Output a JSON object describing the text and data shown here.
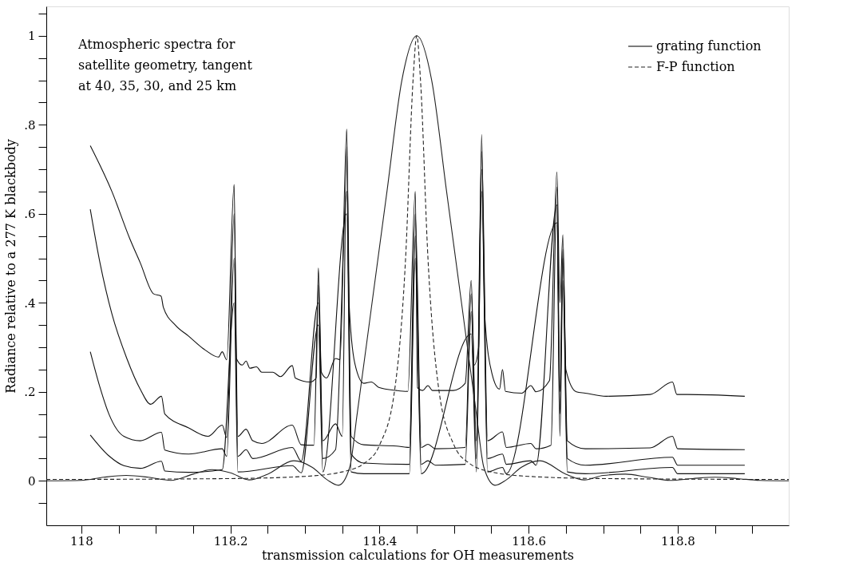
{
  "chart_data": {
    "type": "line",
    "xlabel": "transmission calculations for OH measurements",
    "ylabel": "Radiance relative to a 277 K blackbody",
    "annotations": [
      "Atmospheric spectra for satellite geometry, tangent at 40, 35, 30, and 25 km"
    ],
    "xlim": [
      117.953,
      118.949
    ],
    "xticks": [
      118,
      {
        "value": 118.05,
        "label": null
      },
      {
        "value": 118.1,
        "label": null
      },
      {
        "value": 118.15,
        "label": null
      },
      118.2,
      {
        "value": 118.25,
        "label": null
      },
      {
        "value": 118.3,
        "label": null
      },
      {
        "value": 118.35,
        "label": null
      },
      118.4,
      {
        "value": 118.45,
        "label": null
      },
      {
        "value": 118.5,
        "label": null
      },
      {
        "value": 118.55,
        "label": null
      },
      118.6,
      {
        "value": 118.65,
        "label": null
      },
      {
        "value": 118.7,
        "label": null
      },
      {
        "value": 118.75,
        "label": null
      },
      118.8,
      {
        "value": 118.85,
        "label": null
      },
      {
        "value": 118.9,
        "label": null
      }
    ],
    "ylim": [
      -0.1,
      1.066
    ],
    "yticks": [
      {
        "value": -0.05,
        "label": null
      },
      0,
      {
        "value": 0.05,
        "label": null
      },
      {
        "value": 0.1,
        "label": null
      },
      {
        "value": 0.15,
        "label": null
      },
      {
        "value": 0.2,
        "label": ".2"
      },
      {
        "value": 0.25,
        "label": null
      },
      {
        "value": 0.3,
        "label": null
      },
      {
        "value": 0.35,
        "label": null
      },
      {
        "value": 0.4,
        "label": ".4"
      },
      {
        "value": 0.45,
        "label": null
      },
      {
        "value": 0.5,
        "label": null
      },
      {
        "value": 0.55,
        "label": null
      },
      {
        "value": 0.6,
        "label": ".6"
      },
      {
        "value": 0.65,
        "label": null
      },
      {
        "value": 0.7,
        "label": null
      },
      {
        "value": 0.75,
        "label": null
      },
      {
        "value": 0.8,
        "label": ".8"
      },
      {
        "value": 0.85,
        "label": null
      },
      {
        "value": 0.9,
        "label": null
      },
      {
        "value": 0.95,
        "label": null
      },
      1,
      {
        "value": 1.05,
        "label": null
      }
    ],
    "grid": false,
    "legend": "top right",
    "marker": "none",
    "series": [
      {
        "color": "#111111",
        "line_style": "solid",
        "x": [
          118.012,
          118.041,
          118.065,
          118.079,
          118.097,
          118.107,
          118.11,
          118.126,
          118.144,
          118.166,
          118.184,
          118.189,
          118.195,
          118.205,
          118.208,
          118.216,
          118.221,
          118.226,
          118.235,
          118.242,
          118.257,
          118.267,
          118.283,
          118.287,
          118.307,
          118.315,
          118.318,
          118.322,
          118.329,
          118.341,
          118.347,
          118.356,
          118.359,
          118.367,
          118.379,
          118.389,
          118.399,
          118.423,
          118.438,
          118.448,
          118.451,
          118.458,
          118.465,
          118.471,
          118.499,
          118.515,
          118.523,
          118.527,
          118.533,
          118.537,
          118.541,
          118.551,
          118.561,
          118.565,
          118.569,
          118.591,
          118.603,
          118.61,
          118.628,
          118.638,
          118.642,
          118.646,
          118.65,
          118.664,
          118.676,
          118.704,
          118.763,
          118.793,
          118.799,
          118.813,
          118.89
        ],
        "values": [
          0.753,
          0.65,
          0.544,
          0.49,
          0.42,
          0.415,
          0.39,
          0.35,
          0.325,
          0.294,
          0.278,
          0.29,
          0.272,
          0.666,
          0.275,
          0.26,
          0.269,
          0.253,
          0.256,
          0.244,
          0.244,
          0.234,
          0.259,
          0.231,
          0.222,
          0.231,
          0.478,
          0.244,
          0.231,
          0.275,
          0.272,
          0.79,
          0.406,
          0.263,
          0.219,
          0.222,
          0.21,
          0.203,
          0.201,
          0.65,
          0.209,
          0.203,
          0.214,
          0.203,
          0.203,
          0.219,
          0.45,
          0.26,
          0.3,
          0.778,
          0.375,
          0.24,
          0.206,
          0.25,
          0.201,
          0.197,
          0.214,
          0.2,
          0.225,
          0.694,
          0.4,
          0.553,
          0.25,
          0.2,
          0.197,
          0.19,
          0.194,
          0.222,
          0.194,
          0.194,
          0.19
        ]
      },
      {
        "color": "#111111",
        "line_style": "solid",
        "x": [
          118.012,
          118.025,
          118.041,
          118.061,
          118.079,
          118.093,
          118.1075,
          118.112,
          118.144,
          118.17,
          118.189,
          118.195,
          118.205,
          118.21,
          118.221,
          118.23,
          118.242,
          118.283,
          118.295,
          118.312,
          118.318,
          118.324,
          118.341,
          118.35,
          118.356,
          118.362,
          118.379,
          118.423,
          118.44,
          118.448,
          118.456,
          118.465,
          118.475,
          118.515,
          118.523,
          118.53,
          118.537,
          118.545,
          118.565,
          118.57,
          118.603,
          118.61,
          118.63,
          118.638,
          118.642,
          118.646,
          118.652,
          118.676,
          118.763,
          118.793,
          118.8,
          118.89
        ],
        "values": [
          0.61,
          0.49,
          0.375,
          0.275,
          0.206,
          0.172,
          0.19,
          0.15,
          0.119,
          0.1,
          0.125,
          0.097,
          0.6,
          0.1,
          0.116,
          0.09,
          0.084,
          0.125,
          0.081,
          0.08,
          0.44,
          0.09,
          0.128,
          0.1,
          0.75,
          0.1,
          0.081,
          0.078,
          0.075,
          0.6,
          0.075,
          0.082,
          0.072,
          0.075,
          0.42,
          0.09,
          0.74,
          0.09,
          0.11,
          0.075,
          0.084,
          0.072,
          0.08,
          0.66,
          0.2,
          0.52,
          0.09,
          0.072,
          0.074,
          0.1,
          0.072,
          0.07
        ]
      },
      {
        "color": "#111111",
        "line_style": "solid",
        "x": [
          118.012,
          118.025,
          118.037,
          118.057,
          118.079,
          118.1075,
          118.112,
          118.144,
          118.189,
          118.195,
          118.205,
          118.21,
          118.221,
          118.23,
          118.283,
          118.295,
          118.318,
          118.324,
          118.341,
          118.356,
          118.362,
          118.379,
          118.44,
          118.448,
          118.456,
          118.465,
          118.475,
          118.515,
          118.523,
          118.53,
          118.537,
          118.545,
          118.565,
          118.57,
          118.603,
          118.61,
          118.638,
          118.642,
          118.646,
          118.652,
          118.676,
          118.793,
          118.8,
          118.89
        ],
        "values": [
          0.29,
          0.21,
          0.15,
          0.1,
          0.09,
          0.109,
          0.069,
          0.06,
          0.072,
          0.055,
          0.5,
          0.055,
          0.07,
          0.05,
          0.075,
          0.044,
          0.4,
          0.05,
          0.07,
          0.65,
          0.06,
          0.04,
          0.037,
          0.55,
          0.037,
          0.045,
          0.035,
          0.037,
          0.38,
          0.05,
          0.7,
          0.05,
          0.06,
          0.037,
          0.045,
          0.035,
          0.62,
          0.15,
          0.5,
          0.05,
          0.035,
          0.053,
          0.035,
          0.035
        ]
      },
      {
        "color": "#111111",
        "line_style": "solid",
        "x": [
          118.012,
          118.037,
          118.057,
          118.079,
          118.1075,
          118.112,
          118.144,
          118.189,
          118.205,
          118.21,
          118.283,
          118.295,
          118.318,
          118.324,
          118.356,
          118.362,
          118.379,
          118.44,
          118.448,
          118.456,
          118.523,
          118.53,
          118.537,
          118.545,
          118.565,
          118.57,
          118.638,
          118.642,
          118.646,
          118.652,
          118.676,
          118.793,
          118.8,
          118.89
        ],
        "values": [
          0.103,
          0.056,
          0.034,
          0.028,
          0.044,
          0.022,
          0.019,
          0.025,
          0.4,
          0.02,
          0.034,
          0.018,
          0.35,
          0.02,
          0.6,
          0.02,
          0.016,
          0.016,
          0.5,
          0.016,
          0.33,
          0.02,
          0.65,
          0.02,
          0.03,
          0.016,
          0.58,
          0.1,
          0.45,
          0.02,
          0.016,
          0.03,
          0.016,
          0.016
        ]
      },
      {
        "name": "grating function",
        "color": "#222222",
        "line_style": "solid",
        "x": [
          117.953,
          118.0,
          118.03,
          118.06,
          118.09,
          118.12,
          118.15,
          118.175,
          118.2,
          118.225,
          118.25,
          118.285,
          118.31,
          118.33,
          118.345,
          118.36,
          118.37,
          118.39,
          118.41,
          118.43,
          118.45,
          118.47,
          118.49,
          118.51,
          118.53,
          118.54,
          118.555,
          118.57,
          118.59,
          118.615,
          118.65,
          118.675,
          118.7,
          118.73,
          118.76,
          118.79,
          118.82,
          118.85,
          118.88,
          118.91,
          118.949
        ],
        "values": [
          0,
          0.001,
          0.008,
          0.012,
          0.008,
          0.001,
          0.015,
          0.025,
          0.018,
          0.002,
          0.015,
          0.045,
          0.03,
          0.002,
          -0.01,
          0.03,
          0.15,
          0.4,
          0.65,
          0.9,
          1.0,
          0.9,
          0.65,
          0.4,
          0.15,
          0.03,
          -0.01,
          0.002,
          0.03,
          0.045,
          0.015,
          0.002,
          0.012,
          0.015,
          0.008,
          0.001,
          0.005,
          0.008,
          0.005,
          0.001,
          0
        ]
      },
      {
        "name": "F-P function",
        "color": "#222222",
        "line_style": "dashed",
        "x": [
          117.953,
          118.2,
          118.3,
          118.35,
          118.38,
          118.4,
          118.42,
          118.435,
          118.445,
          118.45,
          118.455,
          118.465,
          118.48,
          118.5,
          118.52,
          118.55,
          118.6,
          118.7,
          118.949
        ],
        "values": [
          0.003,
          0.005,
          0.01,
          0.02,
          0.04,
          0.08,
          0.2,
          0.5,
          0.9,
          1.0,
          0.9,
          0.5,
          0.2,
          0.08,
          0.04,
          0.02,
          0.01,
          0.005,
          0.003
        ]
      }
    ]
  }
}
